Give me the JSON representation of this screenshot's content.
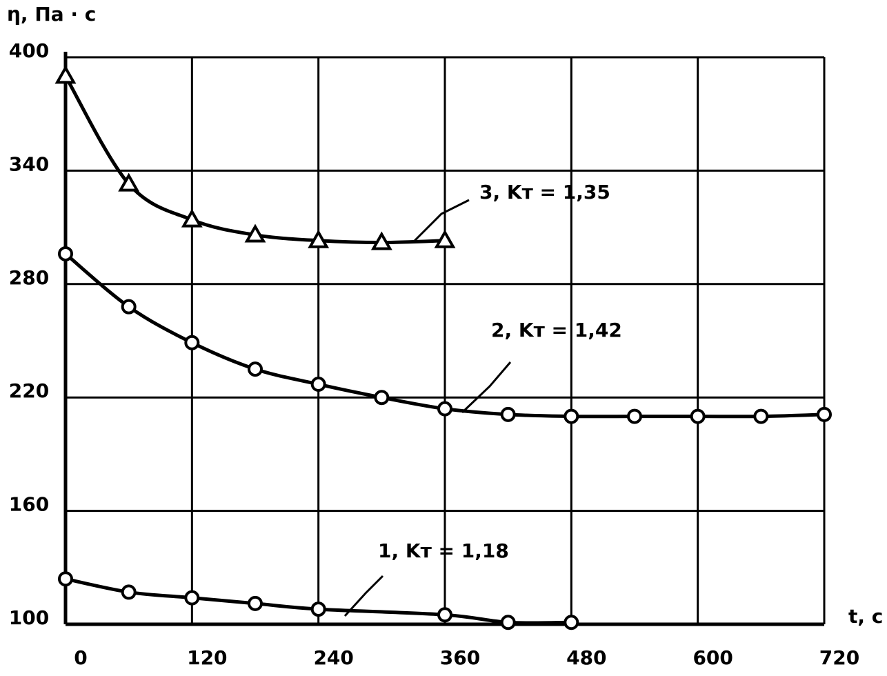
{
  "chart_data": {
    "type": "line",
    "y_label": "η, Па · с",
    "x_label": "t, с",
    "xlim": [
      0,
      720
    ],
    "xticks": [
      0,
      120,
      240,
      360,
      480,
      600,
      720
    ],
    "ylim": [
      100,
      400
    ],
    "yticks": [
      100,
      160,
      220,
      280,
      340,
      400
    ],
    "grid": true,
    "series": [
      {
        "name": "1,  Kт = 1,18",
        "color": "#000000",
        "marker": "circle",
        "x": [
          0,
          60,
          120,
          180,
          240,
          360,
          420,
          480
        ],
        "values": [
          124,
          117,
          114,
          111,
          108,
          105,
          101,
          101
        ]
      },
      {
        "name": "2, Kт = 1,42",
        "color": "#000000",
        "marker": "circle",
        "x": [
          0,
          60,
          120,
          180,
          240,
          300,
          360,
          420,
          480,
          540,
          600,
          660,
          720
        ],
        "values": [
          296,
          268,
          249,
          235,
          227,
          220,
          214,
          211,
          210,
          210,
          210,
          210,
          211
        ]
      },
      {
        "name": "3, Kт = 1,35",
        "color": "#000000",
        "marker": "triangle",
        "x": [
          0,
          60,
          120,
          180,
          240,
          300,
          360
        ],
        "values": [
          390,
          333,
          314,
          306,
          303,
          302,
          303
        ]
      }
    ]
  }
}
